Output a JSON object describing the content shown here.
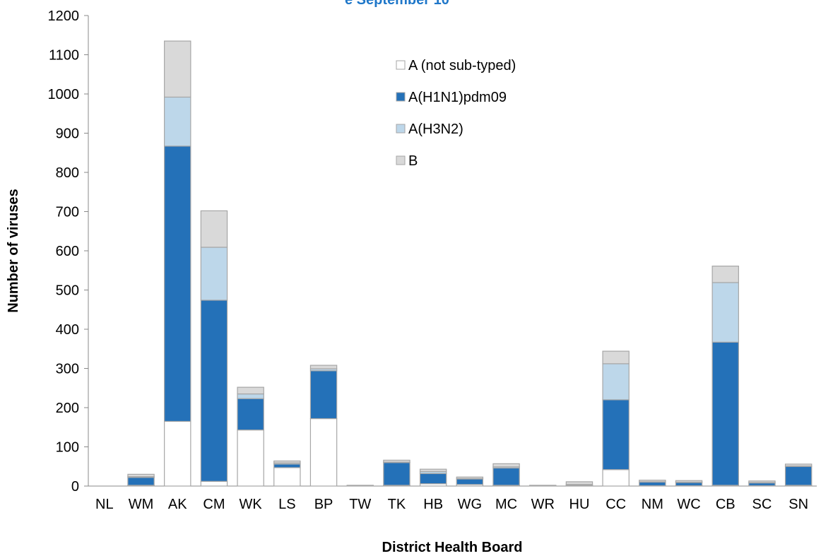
{
  "chart_data": {
    "type": "stacked_bar",
    "title": "e September 10",
    "xlabel": "District Health Board",
    "ylabel": "Number of viruses",
    "categories": [
      "NL",
      "WM",
      "AK",
      "CM",
      "WK",
      "LS",
      "BP",
      "TW",
      "TK",
      "HB",
      "WG",
      "MC",
      "WR",
      "HU",
      "CC",
      "NM",
      "WC",
      "CB",
      "SC",
      "SN"
    ],
    "series": [
      {
        "name": "A (not sub-typed)",
        "color": "#ffffff",
        "values": [
          0,
          2,
          165,
          12,
          143,
          47,
          172,
          0,
          2,
          6,
          4,
          2,
          0,
          1,
          42,
          1,
          1,
          2,
          1,
          2
        ]
      },
      {
        "name": "A(H1N1)pdm09",
        "color": "#2471b8",
        "values": [
          0,
          20,
          702,
          462,
          80,
          9,
          122,
          0,
          58,
          26,
          14,
          44,
          0,
          2,
          178,
          9,
          8,
          365,
          7,
          48
        ]
      },
      {
        "name": "A(H3N2)",
        "color": "#bdd7ea",
        "values": [
          0,
          2,
          125,
          135,
          12,
          3,
          5,
          0,
          1,
          5,
          1,
          3,
          0,
          1,
          92,
          1,
          1,
          152,
          1,
          1
        ]
      },
      {
        "name": "B",
        "color": "#d9d9d9",
        "values": [
          0,
          6,
          143,
          93,
          17,
          5,
          9,
          2,
          5,
          6,
          4,
          8,
          2,
          7,
          32,
          4,
          4,
          42,
          4,
          5
        ]
      }
    ],
    "ylim": [
      0,
      1200
    ],
    "yticks": [
      0,
      100,
      200,
      300,
      400,
      500,
      600,
      700,
      800,
      900,
      1000,
      1100,
      1200
    ],
    "grid": false,
    "legend": "top-center"
  }
}
